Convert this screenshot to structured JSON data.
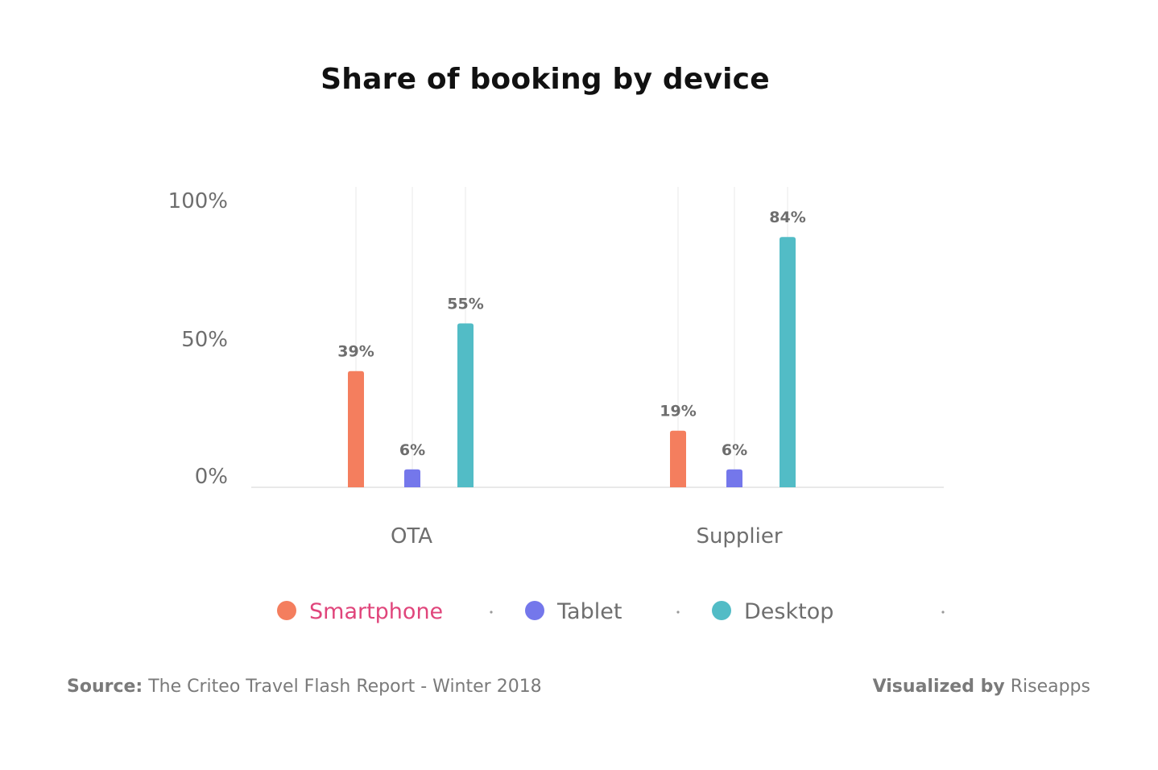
{
  "colors": {
    "smartphone": "#f47e5e",
    "tablet": "#7477eb",
    "desktop": "#52bcc6",
    "legend_active_text": "#e0457b",
    "text_gray": "#6e6e6e",
    "grid": "#ececec"
  },
  "chart_data": {
    "type": "bar",
    "title": "Share of booking by device",
    "xlabel": "",
    "ylabel": "",
    "categories": [
      "OTA",
      "Supplier"
    ],
    "series": [
      {
        "name": "Smartphone",
        "values": [
          39,
          19
        ],
        "labels": [
          "39%",
          "19%"
        ],
        "color": "#f47e5e"
      },
      {
        "name": "Tablet",
        "values": [
          6,
          6
        ],
        "labels": [
          "6%",
          "6%"
        ],
        "color": "#7477eb"
      },
      {
        "name": "Desktop",
        "values": [
          55,
          84
        ],
        "labels": [
          "55%",
          "84%"
        ],
        "color": "#52bcc6"
      }
    ],
    "ylim": [
      0,
      100
    ],
    "yticks": [
      0,
      50,
      100
    ],
    "ytick_labels": [
      "0%",
      "50%",
      "100%"
    ],
    "grid": "vertical",
    "legend_position": "bottom",
    "legend_active": "Smartphone"
  },
  "footer": {
    "source_label": "Source:",
    "source_text": "The Criteo Travel Flash Report - Winter 2018",
    "visualized_label": "Visualized by",
    "visualized_text": "Riseapps"
  }
}
